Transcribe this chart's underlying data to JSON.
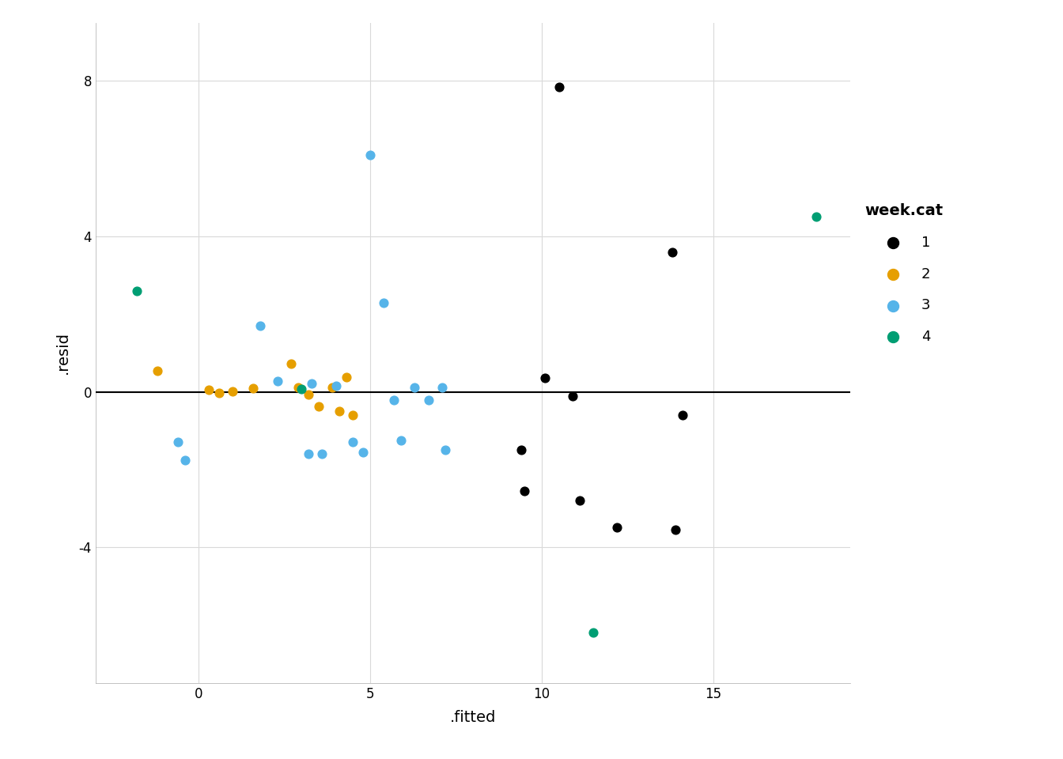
{
  "title": "",
  "xlabel": ".fitted",
  "ylabel": ".resid",
  "legend_title": "week.cat",
  "xlim": [
    -3,
    19
  ],
  "ylim": [
    -7.5,
    9.5
  ],
  "xticks": [
    0,
    5,
    10,
    15
  ],
  "ytick_vals": [
    -4,
    0,
    4,
    8
  ],
  "ytick_labels": [
    "-4",
    "0",
    "4",
    "8"
  ],
  "background_color": "#ffffff",
  "panel_background": "#ffffff",
  "grid_color": "#d9d9d9",
  "colors": {
    "1": "#000000",
    "2": "#E69F00",
    "3": "#56B4E9",
    "4": "#009E73"
  },
  "data": {
    "1": [
      [
        10.5,
        7.85
      ],
      [
        10.1,
        0.35
      ],
      [
        10.9,
        -0.12
      ],
      [
        9.4,
        -1.5
      ],
      [
        9.5,
        -2.55
      ],
      [
        11.1,
        -2.8
      ],
      [
        12.2,
        -3.5
      ],
      [
        13.8,
        3.6
      ],
      [
        14.1,
        -0.6
      ],
      [
        13.9,
        -3.55
      ]
    ],
    "2": [
      [
        -1.2,
        0.55
      ],
      [
        0.3,
        0.05
      ],
      [
        0.6,
        -0.02
      ],
      [
        1.0,
        0.02
      ],
      [
        1.6,
        0.1
      ],
      [
        2.7,
        0.72
      ],
      [
        2.9,
        0.12
      ],
      [
        3.2,
        -0.08
      ],
      [
        3.5,
        -0.38
      ],
      [
        3.9,
        0.12
      ],
      [
        4.1,
        -0.5
      ],
      [
        4.3,
        0.38
      ],
      [
        4.5,
        -0.6
      ]
    ],
    "3": [
      [
        5.0,
        6.1
      ],
      [
        -0.6,
        -1.3
      ],
      [
        -0.4,
        -1.75
      ],
      [
        1.8,
        1.7
      ],
      [
        2.3,
        0.28
      ],
      [
        3.2,
        -1.6
      ],
      [
        3.3,
        0.22
      ],
      [
        3.6,
        -1.6
      ],
      [
        4.0,
        0.15
      ],
      [
        4.5,
        -1.3
      ],
      [
        4.8,
        -1.55
      ],
      [
        5.4,
        2.3
      ],
      [
        5.7,
        -0.22
      ],
      [
        5.9,
        -1.25
      ],
      [
        6.3,
        0.12
      ],
      [
        6.7,
        -0.22
      ],
      [
        7.1,
        0.12
      ],
      [
        7.2,
        -1.5
      ]
    ],
    "4": [
      [
        -1.8,
        2.6
      ],
      [
        3.0,
        0.08
      ],
      [
        11.5,
        -6.2
      ],
      [
        18.0,
        4.5
      ]
    ]
  }
}
